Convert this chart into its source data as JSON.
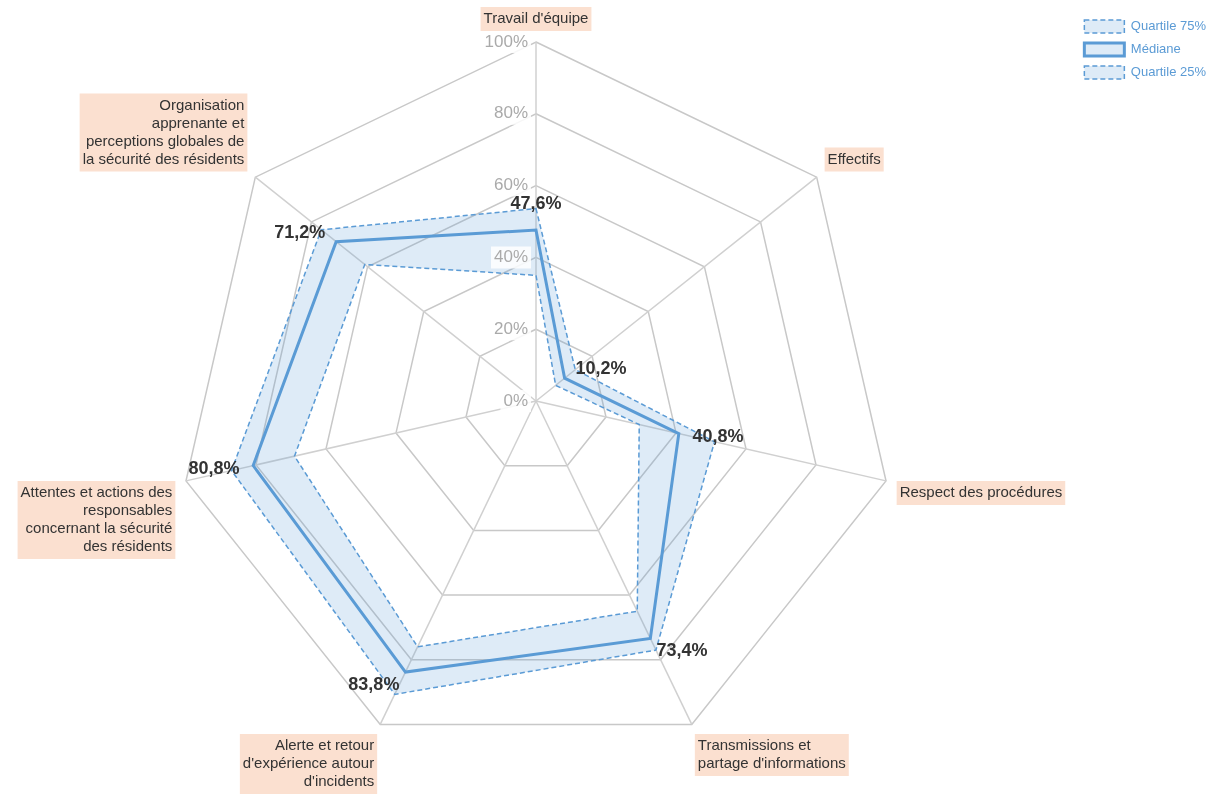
{
  "chart_data": {
    "type": "radar",
    "categories": [
      "Travail d'équipe",
      "Effectifs",
      "Respect des procédures",
      "Transmissions et\npartage d'informations",
      "Alerte et retour\nd'expérience autour\nd'incidents",
      "Attentes et actions des\nresponsables\nconcernant la sécurité\ndes résidents",
      "Organisation\napprenante et\nperceptions globales de\nla sécurité des résidents"
    ],
    "series": [
      {
        "name": "Quartile 75%",
        "color": "#5b9bd5",
        "line_style": "dashed",
        "values": [
          53.6,
          14,
          51,
          77,
          90.7,
          87,
          76.5
        ]
      },
      {
        "name": "Médiane",
        "color": "#5b9bd5",
        "line_style": "solid",
        "values": [
          47.6,
          10.2,
          40.8,
          73.4,
          83.8,
          80.8,
          71.2
        ],
        "value_labels": [
          "47,6%",
          "10,2%",
          "40,8%",
          "73,4%",
          "83,8%",
          "80,8%",
          "71,2%"
        ]
      },
      {
        "name": "Quartile 25%",
        "color": "#5b9bd5",
        "line_style": "dashed",
        "values": [
          35,
          7,
          29.5,
          65,
          76,
          69,
          61
        ]
      }
    ],
    "ylim": [
      0,
      100
    ],
    "yticks": [
      {
        "value": 0,
        "label": "0%"
      },
      {
        "value": 20,
        "label": "20%"
      },
      {
        "value": 40,
        "label": "40%"
      },
      {
        "value": 60,
        "label": "60%"
      },
      {
        "value": 80,
        "label": "80%"
      },
      {
        "value": 100,
        "label": "100%"
      }
    ],
    "grid": true,
    "legend": "top right",
    "marker": "none"
  }
}
